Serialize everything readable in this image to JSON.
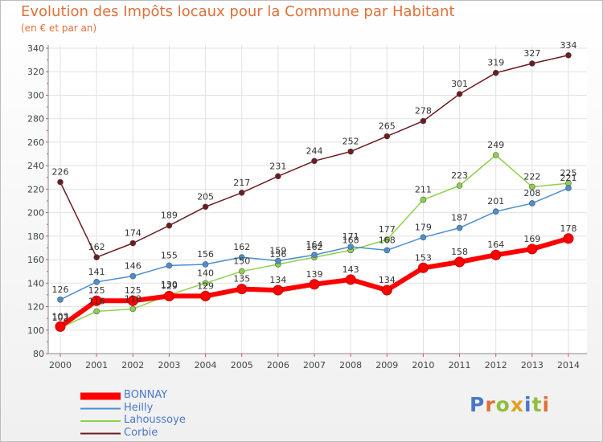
{
  "title": "Evolution des Impôts locaux pour la Commune par Habitant",
  "subtitle": "(en € et par an)",
  "logo_text": "Proxiti",
  "chart_data": {
    "type": "line",
    "x": [
      2000,
      2001,
      2002,
      2003,
      2004,
      2005,
      2006,
      2007,
      2008,
      2009,
      2010,
      2011,
      2012,
      2013,
      2014
    ],
    "ylim": [
      80,
      340
    ],
    "yticks": [
      80,
      100,
      120,
      140,
      160,
      180,
      200,
      220,
      240,
      260,
      280,
      300,
      320,
      340
    ],
    "grid": true,
    "series": [
      {
        "name": "BONNAY",
        "color": "#ff0000",
        "values": [
          103,
          125,
          125,
          129,
          129,
          135,
          134,
          139,
          143,
          134,
          153,
          158,
          164,
          169,
          178
        ]
      },
      {
        "name": "Heilly",
        "color": "#4a8fd0",
        "values": [
          126,
          141,
          146,
          155,
          156,
          162,
          159,
          164,
          171,
          168,
          179,
          187,
          201,
          208,
          221
        ]
      },
      {
        "name": "Lahoussoye",
        "color": "#8fd04a",
        "values": [
          102,
          116,
          118,
          130,
          140,
          150,
          156,
          162,
          168,
          177,
          211,
          223,
          249,
          222,
          225
        ]
      },
      {
        "name": "Corbie",
        "color": "#6b1c22",
        "values": [
          226,
          162,
          174,
          189,
          205,
          217,
          231,
          244,
          252,
          265,
          278,
          301,
          319,
          327,
          334
        ]
      }
    ]
  }
}
